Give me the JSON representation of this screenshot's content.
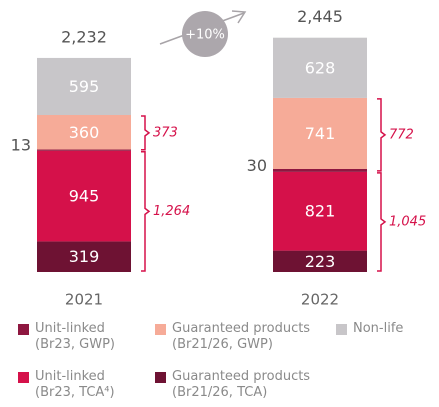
{
  "chart_data": {
    "type": "stacked-bar",
    "categories": [
      "2021",
      "2022"
    ],
    "series": [
      {
        "name": "Guaranteed products (Br21/26, TCA)",
        "color": "#6e1233",
        "values": [
          319,
          223
        ]
      },
      {
        "name": "Unit-linked (Br23, TCA⁴)",
        "color": "#d5114a",
        "values": [
          945,
          821
        ]
      },
      {
        "name": "Unit-linked (Br23, GWP)",
        "color": "#8e1740",
        "values": [
          13,
          30
        ]
      },
      {
        "name": "Guaranteed products (Br21/26, GWP)",
        "color": "#f6ab98",
        "values": [
          360,
          741
        ]
      },
      {
        "name": "Non-life",
        "color": "#c8c6c9",
        "values": [
          595,
          628
        ]
      }
    ],
    "totals": [
      {
        "value": 2232,
        "label": "2,232"
      },
      {
        "value": 2445,
        "label": "2,445"
      }
    ],
    "gwp_brackets": [
      373,
      772
    ],
    "tca_brackets": [
      {
        "value": 1264,
        "label": "1,264"
      },
      {
        "value": 1045,
        "label": "1,045"
      }
    ],
    "growth_annotation": "+10%",
    "ylim": [
      0,
      2836
    ]
  }
}
